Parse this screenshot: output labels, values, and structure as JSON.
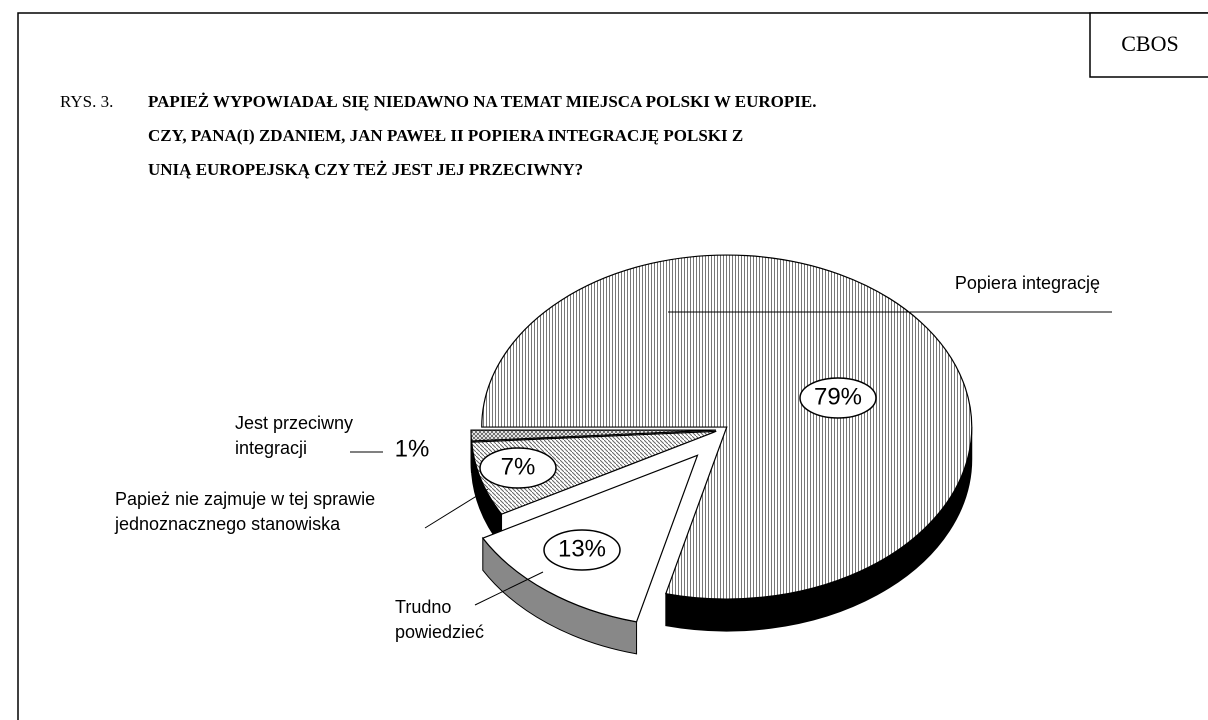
{
  "chart_data": {
    "type": "pie",
    "source": "CBOS",
    "figure_label": "RYS. 3.",
    "title": "PAPIEŻ WYPOWIADAŁ SIĘ NIEDAWNO NA TEMAT MIEJSCA POLSKI W EUROPIE. CZY, PANA(I) ZDANIEM, JAN PAWEŁ II POPIERA INTEGRACJĘ POLSKI Z UNIĄ EUROPEJSKĄ CZY TEŻ JEST JEJ PRZECIWNY?",
    "categories": [
      "Popiera integrację",
      "Trudno powiedzieć",
      "Papież nie zajmuje w tej sprawie jednoznacznego stanowiska",
      "Jest przeciwny integracji"
    ],
    "values": [
      79,
      13,
      7,
      1
    ],
    "value_labels": [
      "79%",
      "13%",
      "7%",
      "1%"
    ]
  }
}
